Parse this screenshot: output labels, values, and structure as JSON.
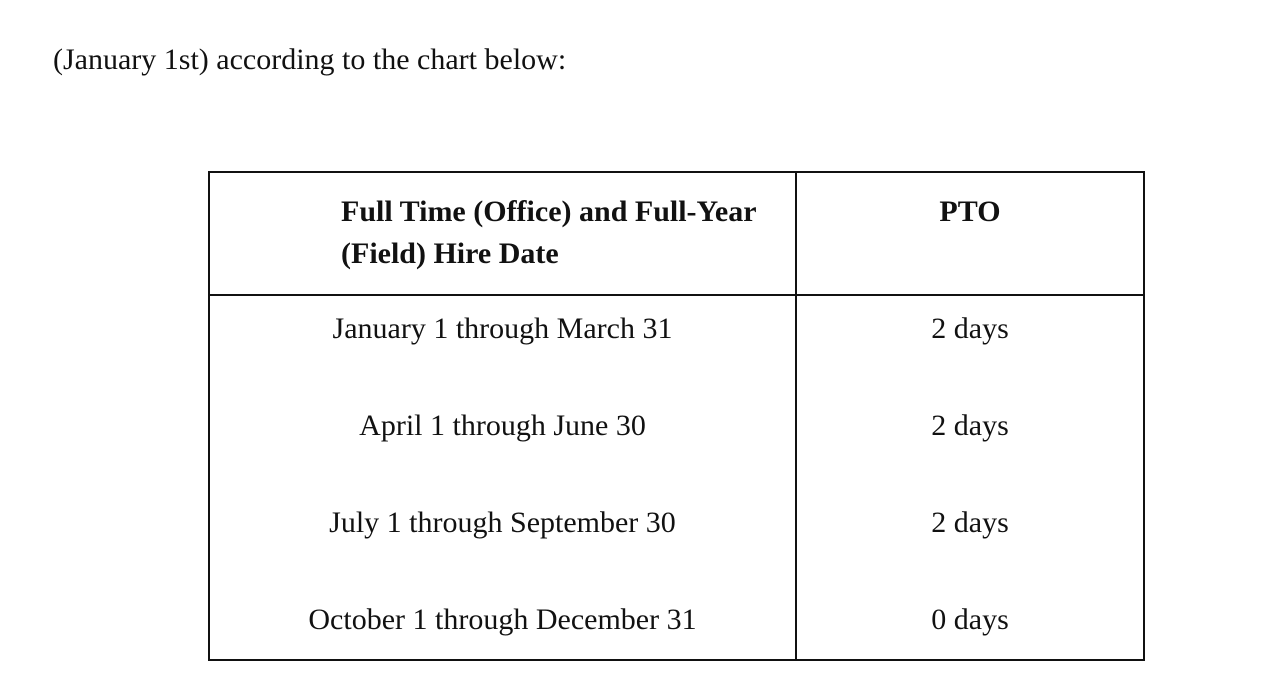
{
  "intro_text": "(January 1st) according to the chart below:",
  "table": {
    "headers": {
      "hire_date_line1": "Full Time (Office) and Full-Year",
      "hire_date_line2": "(Field) Hire Date",
      "pto": "PTO"
    },
    "rows": [
      {
        "hire_date": "January 1 through March 31",
        "pto": "2 days"
      },
      {
        "hire_date": "April 1 through June 30",
        "pto": "2 days"
      },
      {
        "hire_date": "July 1 through September 30",
        "pto": "2 days"
      },
      {
        "hire_date": "October 1 through December 31",
        "pto": "0 days"
      }
    ]
  }
}
